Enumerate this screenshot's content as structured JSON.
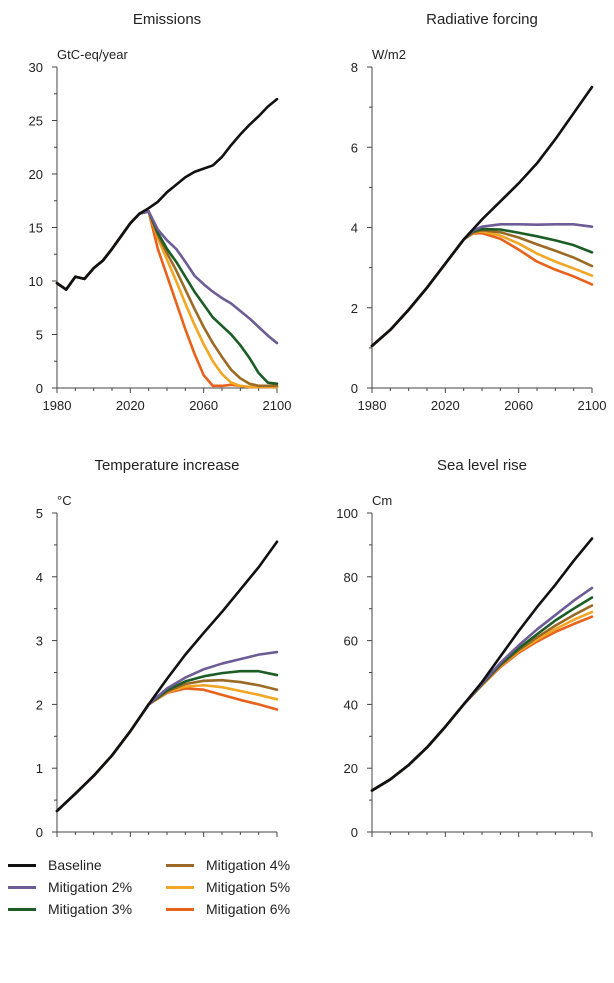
{
  "colors": {
    "Baseline": "#111111",
    "Mitigation 2%": "#6e5c96",
    "Mitigation 3%": "#1c5d26",
    "Mitigation 4%": "#9b6a24",
    "Mitigation 5%": "#f2a623",
    "Mitigation 6%": "#e8621c"
  },
  "legend": [
    {
      "label": "Baseline",
      "color": "#111111"
    },
    {
      "label": "Mitigation 2%",
      "color": "#6e5c96"
    },
    {
      "label": "Mitigation 3%",
      "color": "#1c5d26"
    },
    {
      "label": "Mitigation 4%",
      "color": "#9b6a24"
    },
    {
      "label": "Mitigation 5%",
      "color": "#f2a623"
    },
    {
      "label": "Mitigation 6%",
      "color": "#e8621c"
    }
  ],
  "chart_data": [
    {
      "type": "line",
      "title": "Emissions",
      "ylabel": "GtC-eq/year",
      "xlim": [
        1980,
        2100
      ],
      "ylim": [
        0,
        30
      ],
      "xticks": [
        1980,
        2020,
        2060,
        2100
      ],
      "yticks": [
        0,
        5,
        10,
        15,
        20,
        25,
        30
      ],
      "series": [
        {
          "name": "Baseline",
          "x": [
            1980,
            1985,
            1990,
            1995,
            2000,
            2005,
            2010,
            2015,
            2020,
            2025,
            2030,
            2035,
            2040,
            2045,
            2050,
            2055,
            2060,
            2065,
            2070,
            2075,
            2080,
            2085,
            2090,
            2095,
            2100
          ],
          "y": [
            9.8,
            9.2,
            10.4,
            10.2,
            11.2,
            11.9,
            13.0,
            14.2,
            15.4,
            16.3,
            16.8,
            17.4,
            18.3,
            19.0,
            19.7,
            20.2,
            20.5,
            20.8,
            21.6,
            22.7,
            23.7,
            24.6,
            25.4,
            26.3,
            27.0
          ]
        },
        {
          "name": "Mitigation 2%",
          "x": [
            1980,
            1985,
            1990,
            1995,
            2000,
            2005,
            2010,
            2015,
            2020,
            2025,
            2030,
            2035,
            2040,
            2045,
            2050,
            2055,
            2060,
            2065,
            2070,
            2075,
            2080,
            2085,
            2090,
            2095,
            2100
          ],
          "y": [
            9.8,
            9.2,
            10.4,
            10.2,
            11.2,
            11.9,
            13.0,
            14.2,
            15.4,
            16.3,
            16.5,
            14.8,
            13.8,
            13.0,
            11.8,
            10.5,
            9.7,
            9.0,
            8.4,
            7.9,
            7.2,
            6.5,
            5.7,
            4.9,
            4.2
          ]
        },
        {
          "name": "Mitigation 3%",
          "x": [
            1980,
            1985,
            1990,
            1995,
            2000,
            2005,
            2010,
            2015,
            2020,
            2025,
            2030,
            2035,
            2040,
            2045,
            2050,
            2055,
            2060,
            2065,
            2070,
            2075,
            2080,
            2085,
            2090,
            2095,
            2100
          ],
          "y": [
            9.8,
            9.2,
            10.4,
            10.2,
            11.2,
            11.9,
            13.0,
            14.2,
            15.4,
            16.3,
            16.5,
            14.5,
            13.0,
            11.8,
            10.4,
            9.0,
            7.8,
            6.6,
            5.8,
            5.0,
            4.0,
            2.8,
            1.4,
            0.5,
            0.4
          ]
        },
        {
          "name": "Mitigation 4%",
          "x": [
            1980,
            1985,
            1990,
            1995,
            2000,
            2005,
            2010,
            2015,
            2020,
            2025,
            2030,
            2035,
            2040,
            2045,
            2050,
            2055,
            2060,
            2065,
            2070,
            2075,
            2080,
            2085,
            2090,
            2095,
            2100
          ],
          "y": [
            9.8,
            9.2,
            10.4,
            10.2,
            11.2,
            11.9,
            13.0,
            14.2,
            15.4,
            16.3,
            16.5,
            14.3,
            12.6,
            11.0,
            9.2,
            7.4,
            5.7,
            4.2,
            2.9,
            1.7,
            0.9,
            0.4,
            0.2,
            0.2,
            0.2
          ]
        },
        {
          "name": "Mitigation 5%",
          "x": [
            1980,
            1985,
            1990,
            1995,
            2000,
            2005,
            2010,
            2015,
            2020,
            2025,
            2030,
            2035,
            2040,
            2045,
            2050,
            2055,
            2060,
            2065,
            2070,
            2075,
            2080,
            2085,
            2090,
            2095,
            2100
          ],
          "y": [
            9.8,
            9.2,
            10.4,
            10.2,
            11.2,
            11.9,
            13.0,
            14.2,
            15.4,
            16.3,
            16.5,
            14.0,
            12.0,
            10.0,
            7.9,
            5.9,
            4.1,
            2.5,
            1.3,
            0.5,
            0.2,
            0.1,
            0.1,
            0.1,
            0.1
          ]
        },
        {
          "name": "Mitigation 6%",
          "x": [
            1980,
            1985,
            1990,
            1995,
            2000,
            2005,
            2010,
            2015,
            2020,
            2025,
            2030,
            2035,
            2040,
            2045,
            2050,
            2055,
            2060,
            2065,
            2070,
            2075,
            2080,
            2085,
            2090,
            2095,
            2100
          ],
          "y": [
            9.8,
            9.2,
            10.4,
            10.2,
            11.2,
            11.9,
            13.0,
            14.2,
            15.4,
            16.3,
            16.5,
            13.0,
            10.5,
            8.0,
            5.5,
            3.2,
            1.2,
            0.2,
            0.2,
            0.3,
            0.2,
            0.1,
            0.1,
            0.1,
            0.1
          ]
        }
      ]
    },
    {
      "type": "line",
      "title": "Radiative forcing",
      "ylabel": "W/m2",
      "xlim": [
        1980,
        2100
      ],
      "ylim": [
        0,
        8
      ],
      "xticks": [
        1980,
        2020,
        2060,
        2100
      ],
      "yticks": [
        0,
        2,
        4,
        6,
        8
      ],
      "series": [
        {
          "name": "Baseline",
          "x": [
            1980,
            1990,
            2000,
            2010,
            2020,
            2030,
            2040,
            2050,
            2060,
            2070,
            2080,
            2090,
            2100
          ],
          "y": [
            1.05,
            1.45,
            1.95,
            2.5,
            3.1,
            3.7,
            4.2,
            4.65,
            5.1,
            5.6,
            6.2,
            6.85,
            7.5
          ]
        },
        {
          "name": "Mitigation 2%",
          "x": [
            1980,
            1990,
            2000,
            2010,
            2020,
            2030,
            2035,
            2040,
            2050,
            2060,
            2070,
            2080,
            2090,
            2100
          ],
          "y": [
            1.05,
            1.45,
            1.95,
            2.5,
            3.1,
            3.7,
            3.92,
            4.02,
            4.08,
            4.08,
            4.07,
            4.08,
            4.08,
            4.02
          ]
        },
        {
          "name": "Mitigation 3%",
          "x": [
            1980,
            1990,
            2000,
            2010,
            2020,
            2030,
            2035,
            2040,
            2050,
            2060,
            2070,
            2080,
            2090,
            2100
          ],
          "y": [
            1.05,
            1.45,
            1.95,
            2.5,
            3.1,
            3.7,
            3.9,
            3.96,
            3.95,
            3.87,
            3.78,
            3.68,
            3.56,
            3.38
          ]
        },
        {
          "name": "Mitigation 4%",
          "x": [
            1980,
            1990,
            2000,
            2010,
            2020,
            2030,
            2035,
            2040,
            2050,
            2060,
            2070,
            2080,
            2090,
            2100
          ],
          "y": [
            1.05,
            1.45,
            1.95,
            2.5,
            3.1,
            3.7,
            3.88,
            3.93,
            3.88,
            3.75,
            3.58,
            3.42,
            3.25,
            3.04
          ]
        },
        {
          "name": "Mitigation 5%",
          "x": [
            1980,
            1990,
            2000,
            2010,
            2020,
            2030,
            2035,
            2040,
            2050,
            2060,
            2070,
            2080,
            2090,
            2100
          ],
          "y": [
            1.05,
            1.45,
            1.95,
            2.5,
            3.1,
            3.7,
            3.87,
            3.9,
            3.8,
            3.6,
            3.35,
            3.15,
            2.98,
            2.8
          ]
        },
        {
          "name": "Mitigation 6%",
          "x": [
            1980,
            1990,
            2000,
            2010,
            2020,
            2030,
            2035,
            2040,
            2050,
            2060,
            2070,
            2080,
            2090,
            2100
          ],
          "y": [
            1.05,
            1.45,
            1.95,
            2.5,
            3.1,
            3.7,
            3.85,
            3.86,
            3.72,
            3.45,
            3.15,
            2.95,
            2.78,
            2.58
          ]
        }
      ]
    },
    {
      "type": "line",
      "title": "Temperature increase",
      "ylabel": "°C",
      "xlim": [
        1980,
        2100
      ],
      "ylim": [
        0,
        5
      ],
      "xticks": [
        1980,
        2020,
        2060,
        2100
      ],
      "yticks": [
        0,
        1,
        2,
        3,
        4,
        5
      ],
      "series": [
        {
          "name": "Baseline",
          "x": [
            1980,
            1990,
            2000,
            2010,
            2020,
            2030,
            2040,
            2050,
            2060,
            2070,
            2080,
            2090,
            2100
          ],
          "y": [
            0.33,
            0.6,
            0.88,
            1.2,
            1.58,
            2.0,
            2.4,
            2.78,
            3.12,
            3.45,
            3.8,
            4.15,
            4.55
          ]
        },
        {
          "name": "Mitigation 2%",
          "x": [
            1980,
            1990,
            2000,
            2010,
            2020,
            2030,
            2040,
            2050,
            2060,
            2070,
            2080,
            2090,
            2100
          ],
          "y": [
            0.33,
            0.6,
            0.88,
            1.2,
            1.58,
            2.0,
            2.25,
            2.42,
            2.55,
            2.64,
            2.71,
            2.78,
            2.82
          ]
        },
        {
          "name": "Mitigation 3%",
          "x": [
            1980,
            1990,
            2000,
            2010,
            2020,
            2030,
            2040,
            2050,
            2060,
            2070,
            2080,
            2090,
            2100
          ],
          "y": [
            0.33,
            0.6,
            0.88,
            1.2,
            1.58,
            2.0,
            2.22,
            2.36,
            2.44,
            2.49,
            2.52,
            2.52,
            2.46
          ]
        },
        {
          "name": "Mitigation 4%",
          "x": [
            1980,
            1990,
            2000,
            2010,
            2020,
            2030,
            2040,
            2050,
            2060,
            2070,
            2080,
            2090,
            2100
          ],
          "y": [
            0.33,
            0.6,
            0.88,
            1.2,
            1.58,
            2.0,
            2.2,
            2.32,
            2.37,
            2.38,
            2.35,
            2.3,
            2.23
          ]
        },
        {
          "name": "Mitigation 5%",
          "x": [
            1980,
            1990,
            2000,
            2010,
            2020,
            2030,
            2040,
            2050,
            2060,
            2070,
            2080,
            2090,
            2100
          ],
          "y": [
            0.33,
            0.6,
            0.88,
            1.2,
            1.58,
            2.0,
            2.19,
            2.28,
            2.3,
            2.27,
            2.21,
            2.15,
            2.08
          ]
        },
        {
          "name": "Mitigation 6%",
          "x": [
            1980,
            1990,
            2000,
            2010,
            2020,
            2030,
            2040,
            2050,
            2060,
            2070,
            2080,
            2090,
            2100
          ],
          "y": [
            0.33,
            0.6,
            0.88,
            1.2,
            1.58,
            2.0,
            2.18,
            2.25,
            2.23,
            2.15,
            2.07,
            2.0,
            1.92
          ]
        }
      ]
    },
    {
      "type": "line",
      "title": "Sea level rise",
      "ylabel": "Cm",
      "xlim": [
        1980,
        2100
      ],
      "ylim": [
        0,
        100
      ],
      "xticks": [
        1980,
        2020,
        2060,
        2100
      ],
      "yticks": [
        0,
        20,
        40,
        60,
        80,
        100
      ],
      "series": [
        {
          "name": "Baseline",
          "x": [
            1980,
            1990,
            2000,
            2010,
            2020,
            2030,
            2040,
            2050,
            2060,
            2070,
            2080,
            2090,
            2100
          ],
          "y": [
            13,
            16.5,
            21,
            26.5,
            33,
            40,
            47,
            55,
            63,
            70.5,
            77.5,
            85,
            92
          ]
        },
        {
          "name": "Mitigation 2%",
          "x": [
            1980,
            1990,
            2000,
            2010,
            2020,
            2030,
            2040,
            2050,
            2060,
            2070,
            2080,
            2090,
            2100
          ],
          "y": [
            13,
            16.5,
            21,
            26.5,
            33,
            40,
            46.5,
            53,
            58.5,
            63.5,
            68,
            72.5,
            76.5
          ]
        },
        {
          "name": "Mitigation 3%",
          "x": [
            1980,
            1990,
            2000,
            2010,
            2020,
            2030,
            2040,
            2050,
            2060,
            2070,
            2080,
            2090,
            2100
          ],
          "y": [
            13,
            16.5,
            21,
            26.5,
            33,
            40,
            46.3,
            52.5,
            57.5,
            62,
            66.3,
            70,
            73.5
          ]
        },
        {
          "name": "Mitigation 4%",
          "x": [
            1980,
            1990,
            2000,
            2010,
            2020,
            2030,
            2040,
            2050,
            2060,
            2070,
            2080,
            2090,
            2100
          ],
          "y": [
            13,
            16.5,
            21,
            26.5,
            33,
            40,
            46.2,
            52.2,
            57,
            61,
            64.7,
            68,
            71
          ]
        },
        {
          "name": "Mitigation 5%",
          "x": [
            1980,
            1990,
            2000,
            2010,
            2020,
            2030,
            2040,
            2050,
            2060,
            2070,
            2080,
            2090,
            2100
          ],
          "y": [
            13,
            16.5,
            21,
            26.5,
            33,
            40,
            46.1,
            52,
            56.6,
            60.3,
            63.6,
            66.5,
            69
          ]
        },
        {
          "name": "Mitigation 6%",
          "x": [
            1980,
            1990,
            2000,
            2010,
            2020,
            2030,
            2040,
            2050,
            2060,
            2070,
            2080,
            2090,
            2100
          ],
          "y": [
            13,
            16.5,
            21,
            26.5,
            33,
            40,
            46,
            51.7,
            56.2,
            59.7,
            62.7,
            65.2,
            67.5
          ]
        }
      ]
    }
  ]
}
